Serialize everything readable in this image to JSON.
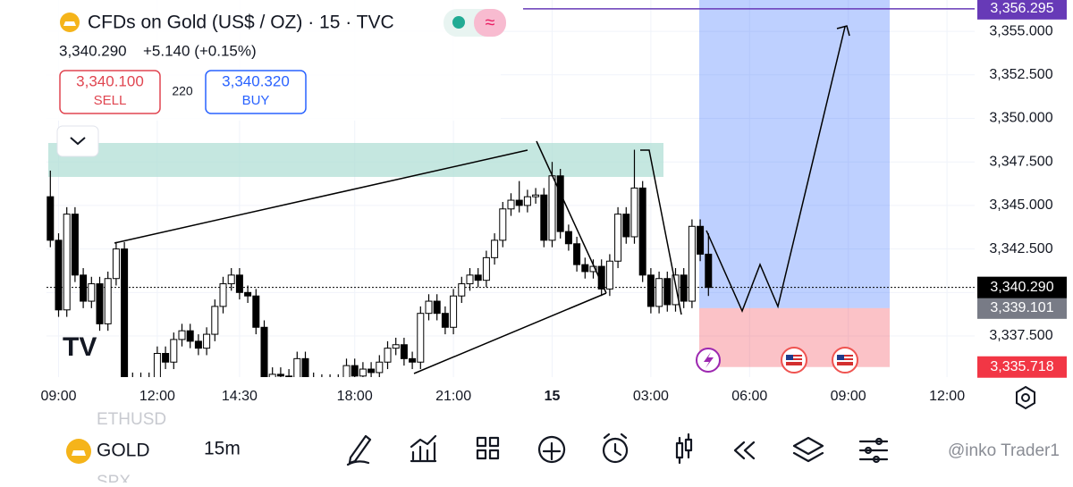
{
  "header": {
    "symbol_title": "CFDs on Gold (US$ / OZ) · 15 · TVC",
    "last": "3,340.290",
    "change": "+5.140 (+0.15%)",
    "sell_price": "3,340.100",
    "sell_label": "SELL",
    "spread": "220",
    "buy_price": "3,340.320",
    "buy_label": "BUY"
  },
  "chart_data": {
    "type": "candlestick",
    "x": [
      8.75,
      9,
      9.25,
      9.5,
      9.75,
      10,
      10.25,
      10.5,
      10.75,
      11,
      11.25,
      11.5,
      11.75,
      12,
      12.25,
      12.5,
      12.75,
      13,
      13.25,
      13.5,
      13.75,
      14,
      14.25,
      14.5,
      14.75,
      15,
      15.25,
      15.5,
      15.75,
      16,
      16.25,
      16.5,
      16.75,
      17,
      17.25,
      17.5,
      17.75,
      18,
      18.25,
      18.5,
      18.75,
      19,
      19.25,
      19.5,
      19.75,
      20,
      20.25,
      20.5,
      20.75,
      21,
      21.25,
      21.5,
      21.75,
      22,
      22.25,
      22.5,
      22.75,
      23,
      23.25,
      23.5,
      23.75,
      24,
      24.25,
      24.5,
      24.75,
      25,
      25.25,
      25.5,
      25.75,
      26,
      26.25,
      26.5,
      26.75,
      27,
      27.25,
      27.5,
      27.75,
      28,
      28.25,
      28.5,
      28.75
    ],
    "open": [
      3345.5,
      3343.0,
      3339.0,
      3344.5,
      3341.0,
      3339.5,
      3340.5,
      3338.2,
      3340.8,
      3342.5,
      3335.0,
      3334.8,
      3335.0,
      3334.9,
      3336.5,
      3336.0,
      3337.3,
      3337.8,
      3337.2,
      3336.8,
      3337.6,
      3339.2,
      3340.5,
      3341.0,
      3340.0,
      3339.8,
      3338.0,
      3335.0,
      3335.3,
      3335.2,
      3335.0,
      3336.2,
      3335.0,
      3334.8,
      3334.9,
      3334.7,
      3334.9,
      3335.8,
      3335.2,
      3335.6,
      3335.4,
      3336.0,
      3336.8,
      3337.0,
      3336.2,
      3336.0,
      3338.8,
      3339.5,
      3338.8,
      3338.0,
      3339.8,
      3340.5,
      3341.0,
      3340.7,
      3342.0,
      3343.0,
      3344.8,
      3345.3,
      3345.0,
      3345.5,
      3345.6,
      3343.0,
      3346.7,
      3343.5,
      3342.8,
      3341.6,
      3341.2,
      3341.5,
      3340.2,
      3341.8,
      3344.5,
      3343.2,
      3346.0,
      3341.0,
      3339.2,
      3340.8,
      3339.3,
      3341.0,
      3339.5,
      3343.8,
      3342.2
    ],
    "high": [
      3347.0,
      3343.4,
      3344.9,
      3344.9,
      3341.4,
      3340.9,
      3340.9,
      3341.2,
      3342.9,
      3342.9,
      3335.4,
      3335.4,
      3335.4,
      3336.9,
      3336.9,
      3337.7,
      3338.2,
      3338.2,
      3337.6,
      3338.0,
      3339.6,
      3340.9,
      3341.4,
      3341.4,
      3340.4,
      3340.2,
      3338.4,
      3335.7,
      3335.7,
      3335.6,
      3336.6,
      3336.6,
      3335.4,
      3335.3,
      3335.3,
      3335.3,
      3336.2,
      3336.2,
      3336.0,
      3336.0,
      3336.4,
      3337.2,
      3337.4,
      3337.4,
      3336.6,
      3339.2,
      3339.9,
      3339.9,
      3339.2,
      3340.2,
      3340.9,
      3341.4,
      3341.4,
      3342.4,
      3343.4,
      3345.2,
      3345.7,
      3346.4,
      3345.9,
      3346.0,
      3346.0,
      3347.5,
      3347.1,
      3343.9,
      3343.2,
      3342.0,
      3341.9,
      3341.9,
      3342.2,
      3344.9,
      3344.9,
      3348.2,
      3346.4,
      3341.4,
      3341.2,
      3341.2,
      3341.4,
      3341.4,
      3344.2,
      3344.2,
      3343.4
    ],
    "low": [
      3342.6,
      3338.6,
      3338.6,
      3340.6,
      3339.1,
      3339.1,
      3337.8,
      3337.8,
      3340.4,
      3334.6,
      3334.4,
      3334.4,
      3334.5,
      3334.5,
      3335.6,
      3335.6,
      3336.9,
      3336.8,
      3336.4,
      3336.4,
      3337.2,
      3338.8,
      3340.1,
      3339.6,
      3339.4,
      3337.6,
      3334.6,
      3334.6,
      3334.8,
      3334.6,
      3334.6,
      3334.6,
      3334.4,
      3334.4,
      3334.3,
      3334.3,
      3334.5,
      3334.8,
      3334.8,
      3335.0,
      3335.0,
      3335.6,
      3336.4,
      3335.8,
      3335.6,
      3335.6,
      3338.4,
      3338.4,
      3337.6,
      3337.6,
      3339.4,
      3340.1,
      3340.3,
      3340.3,
      3341.6,
      3342.6,
      3344.4,
      3344.6,
      3344.6,
      3345.1,
      3342.6,
      3342.6,
      3343.1,
      3342.4,
      3341.2,
      3340.8,
      3340.8,
      3339.8,
      3339.8,
      3341.4,
      3342.8,
      3342.8,
      3340.6,
      3338.8,
      3338.8,
      3338.9,
      3338.9,
      3339.1,
      3339.1,
      3341.8,
      3339.8
    ],
    "close": [
      3343.0,
      3339.0,
      3344.5,
      3341.0,
      3339.5,
      3340.5,
      3338.2,
      3340.8,
      3342.5,
      3335.0,
      3334.8,
      3335.0,
      3334.9,
      3336.5,
      3336.0,
      3337.3,
      3337.8,
      3337.2,
      3336.8,
      3337.6,
      3339.2,
      3340.5,
      3341.0,
      3340.0,
      3339.8,
      3338.0,
      3335.0,
      3335.3,
      3335.2,
      3335.0,
      3336.2,
      3335.0,
      3334.8,
      3334.9,
      3334.7,
      3334.9,
      3335.8,
      3335.2,
      3335.6,
      3335.4,
      3336.0,
      3336.8,
      3337.0,
      3336.2,
      3336.0,
      3338.8,
      3339.5,
      3338.8,
      3338.0,
      3339.8,
      3340.5,
      3341.0,
      3340.7,
      3342.0,
      3343.0,
      3344.8,
      3345.3,
      3345.0,
      3345.5,
      3345.6,
      3343.0,
      3346.7,
      3343.5,
      3342.8,
      3341.6,
      3341.2,
      3341.5,
      3340.2,
      3341.8,
      3344.5,
      3343.2,
      3346.0,
      3341.0,
      3339.2,
      3340.8,
      3339.3,
      3341.0,
      3339.5,
      3343.8,
      3342.2,
      3340.29
    ],
    "up_color": "#ffffff",
    "down_color": "#000000",
    "xlim": [
      7.22,
      36.84
    ],
    "xticks": [
      {
        "value": 9,
        "label": "09:00"
      },
      {
        "value": 12,
        "label": "12:00"
      },
      {
        "value": 14.5,
        "label": "14:30"
      },
      {
        "value": 18,
        "label": "18:00"
      },
      {
        "value": 21,
        "label": "21:00"
      },
      {
        "value": 24,
        "label": "15"
      },
      {
        "value": 27,
        "label": "03:00"
      },
      {
        "value": 30,
        "label": "06:00"
      },
      {
        "value": 33,
        "label": "09:00"
      },
      {
        "value": 36,
        "label": "12:00"
      }
    ],
    "ylim": [
      3335.14,
      3356.8
    ],
    "yticks": [
      {
        "value": 3337.5,
        "label": "3,337.500"
      },
      {
        "value": 3340,
        "label": "3,340.000"
      },
      {
        "value": 3342.5,
        "label": "3,342.500"
      },
      {
        "value": 3345,
        "label": "3,345.000"
      },
      {
        "value": 3347.5,
        "label": "3,347.500"
      },
      {
        "value": 3350,
        "label": "3,350.000"
      },
      {
        "value": 3352.5,
        "label": "3,352.500"
      },
      {
        "value": 3355,
        "label": "3,355.000"
      }
    ],
    "grid": true,
    "target": {
      "value": 3356.295,
      "label": "3,356.295",
      "color": "#673ab7"
    },
    "entry": {
      "value": 3339.101,
      "label": "3,339.101",
      "color": "#787b86"
    },
    "stop": {
      "value": 3335.718,
      "label": "3,335.718",
      "color": "#f23645"
    },
    "last_price": {
      "value": 3340.29,
      "label": "3,340.290"
    }
  },
  "toolbar": {
    "watchlist": [
      "ETHUSD",
      "GOLD",
      "SPX"
    ],
    "interval": "15m",
    "watermark": "@inko Trader1"
  }
}
